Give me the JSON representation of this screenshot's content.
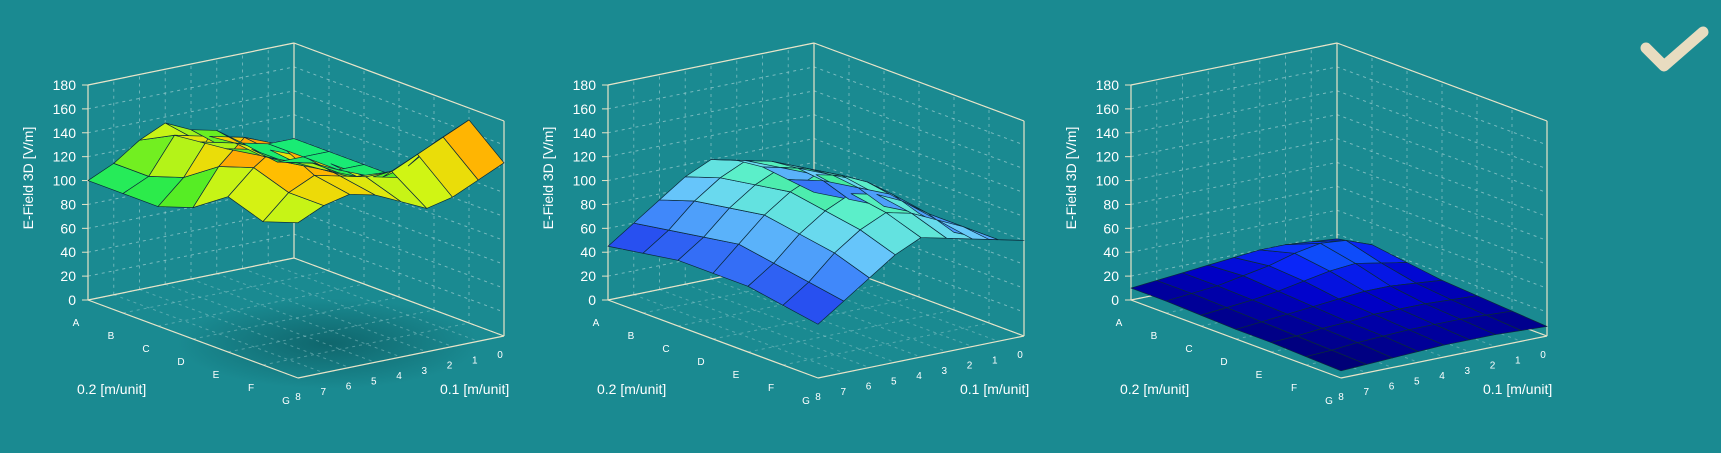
{
  "chart_data": [
    {
      "type": "surface3d",
      "ylabel": "E-Field 3D [V/m]",
      "xlabel": "0.2 [m/unit]",
      "zlabel": "0.1 [m/unit]",
      "row_ticks": [
        "A",
        "B",
        "C",
        "D",
        "E",
        "F",
        "G"
      ],
      "col_ticks": [
        "0",
        "1",
        "2",
        "3",
        "4",
        "5",
        "6",
        "7",
        "8"
      ],
      "y_ticks": [
        "0",
        "20",
        "40",
        "60",
        "80",
        "100",
        "120",
        "140",
        "160",
        "180"
      ],
      "ylim": [
        0,
        180
      ],
      "grid": true,
      "colormap": "hot",
      "values": [
        [
          100,
          110,
          125,
          135,
          125,
          120,
          105,
          100,
          100
        ],
        [
          100,
          110,
          140,
          130,
          120,
          115,
          100,
          100,
          100
        ],
        [
          100,
          120,
          150,
          140,
          125,
          115,
          110,
          100,
          100
        ],
        [
          110,
          140,
          160,
          145,
          130,
          120,
          110,
          105,
          100
        ],
        [
          130,
          150,
          165,
          150,
          140,
          125,
          120,
          125,
          140
        ],
        [
          120,
          140,
          150,
          145,
          140,
          140,
          150,
          160,
          170
        ],
        [
          130,
          140,
          145,
          140,
          130,
          120,
          125,
          135,
          145
        ]
      ]
    },
    {
      "type": "surface3d",
      "ylabel": "E-Field 3D [V/m]",
      "xlabel": "0.2 [m/unit]",
      "zlabel": "0.1 [m/unit]",
      "row_ticks": [
        "A",
        "B",
        "C",
        "D",
        "E",
        "F",
        "G"
      ],
      "col_ticks": [
        "0",
        "1",
        "2",
        "3",
        "4",
        "5",
        "6",
        "7",
        "8"
      ],
      "y_ticks": [
        "0",
        "20",
        "40",
        "60",
        "80",
        "100",
        "120",
        "140",
        "160",
        "180"
      ],
      "ylim": [
        0,
        180
      ],
      "grid": true,
      "colormap": "cool",
      "values": [
        [
          45,
          60,
          75,
          90,
          100,
          95,
          85,
          70,
          55
        ],
        [
          50,
          65,
          85,
          100,
          110,
          105,
          95,
          80,
          60
        ],
        [
          55,
          70,
          90,
          105,
          115,
          110,
          100,
          85,
          65
        ],
        [
          55,
          75,
          95,
          110,
          120,
          115,
          105,
          90,
          70
        ],
        [
          55,
          70,
          90,
          105,
          115,
          110,
          100,
          85,
          65
        ],
        [
          50,
          65,
          85,
          100,
          110,
          105,
          95,
          85,
          70
        ],
        [
          45,
          60,
          75,
          90,
          100,
          95,
          90,
          85,
          80
        ]
      ]
    },
    {
      "type": "surface3d",
      "ylabel": "E-Field 3D [V/m]",
      "xlabel": "0.2 [m/unit]",
      "zlabel": "0.1 [m/unit]",
      "row_ticks": [
        "A",
        "B",
        "C",
        "D",
        "E",
        "F",
        "G"
      ],
      "col_ticks": [
        "0",
        "1",
        "2",
        "3",
        "4",
        "5",
        "6",
        "7",
        "8"
      ],
      "y_ticks": [
        "0",
        "20",
        "40",
        "60",
        "80",
        "100",
        "120",
        "140",
        "160",
        "180"
      ],
      "ylim": [
        0,
        180
      ],
      "grid": true,
      "colormap": "blue",
      "values": [
        [
          10,
          12,
          14,
          16,
          18,
          20,
          20,
          18,
          16
        ],
        [
          10,
          12,
          14,
          18,
          22,
          28,
          32,
          30,
          22
        ],
        [
          9,
          11,
          13,
          16,
          20,
          24,
          26,
          22,
          18
        ],
        [
          8,
          10,
          12,
          14,
          16,
          18,
          18,
          16,
          14
        ],
        [
          8,
          9,
          11,
          12,
          14,
          14,
          14,
          13,
          12
        ],
        [
          7,
          8,
          10,
          11,
          12,
          12,
          12,
          11,
          10
        ],
        [
          6,
          7,
          8,
          9,
          10,
          10,
          10,
          9,
          8
        ]
      ]
    }
  ],
  "status": {
    "icon": "checkmark-icon",
    "color": "#e8dcc0"
  },
  "colors": {
    "background": "#1a8a91",
    "axis": "#e8e4c8",
    "grid": "#9fcfd2"
  }
}
